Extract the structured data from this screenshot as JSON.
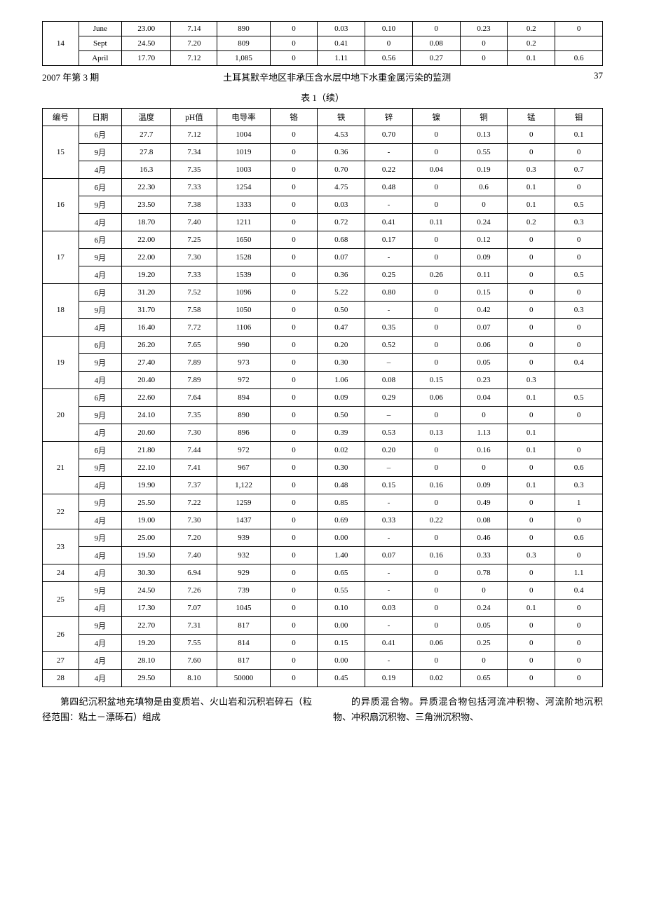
{
  "topTable": {
    "id": "14",
    "rows": [
      {
        "date": "June",
        "temp": "23.00",
        "ph": "7.14",
        "cond": "890",
        "cr": "0",
        "fe": "0.03",
        "zn": "0.10",
        "ni": "0",
        "cu": "0.23",
        "mn": "0.2",
        "mo": "0"
      },
      {
        "date": "Sept",
        "temp": "24.50",
        "ph": "7.20",
        "cond": "809",
        "cr": "0",
        "fe": "0.41",
        "zn": "0",
        "ni": "0.08",
        "cu": "0",
        "mn": "0.2",
        "mo": ""
      },
      {
        "date": "April",
        "temp": "17.70",
        "ph": "7.12",
        "cond": "1,085",
        "cr": "0",
        "fe": "1.11",
        "zn": "0.56",
        "ni": "0.27",
        "cu": "0",
        "mn": "0.1",
        "mo": "0.6"
      }
    ]
  },
  "pageHeader": {
    "issue": "2007 年第 3 期",
    "title": "土耳其默辛地区非承压含水层中地下水重金属污染的监测",
    "pageNumber": "37"
  },
  "tableCaption": "表 1（续）",
  "mainTable": {
    "columns": [
      "编号",
      "日期",
      "温度",
      "pH值",
      "电导率",
      "铬",
      "铁",
      "锌",
      "镍",
      "铜",
      "锰",
      "钼"
    ],
    "groups": [
      {
        "id": "15",
        "rows": [
          {
            "date": "6月",
            "temp": "27.7",
            "ph": "7.12",
            "cond": "1004",
            "cr": "0",
            "fe": "4.53",
            "zn": "0.70",
            "ni": "0",
            "cu": "0.13",
            "mn": "0",
            "mo": "0.1"
          },
          {
            "date": "9月",
            "temp": "27.8",
            "ph": "7.34",
            "cond": "1019",
            "cr": "0",
            "fe": "0.36",
            "zn": "-",
            "ni": "0",
            "cu": "0.55",
            "mn": "0",
            "mo": "0"
          },
          {
            "date": "4月",
            "temp": "16.3",
            "ph": "7.35",
            "cond": "1003",
            "cr": "0",
            "fe": "0.70",
            "zn": "0.22",
            "ni": "0.04",
            "cu": "0.19",
            "mn": "0.3",
            "mo": "0.7"
          }
        ]
      },
      {
        "id": "16",
        "rows": [
          {
            "date": "6月",
            "temp": "22.30",
            "ph": "7.33",
            "cond": "1254",
            "cr": "0",
            "fe": "4.75",
            "zn": "0.48",
            "ni": "0",
            "cu": "0.6",
            "mn": "0.1",
            "mo": "0"
          },
          {
            "date": "9月",
            "temp": "23.50",
            "ph": "7.38",
            "cond": "1333",
            "cr": "0",
            "fe": "0.03",
            "zn": "-",
            "ni": "0",
            "cu": "0",
            "mn": "0.1",
            "mo": "0.5"
          },
          {
            "date": "4月",
            "temp": "18.70",
            "ph": "7.40",
            "cond": "1211",
            "cr": "0",
            "fe": "0.72",
            "zn": "0.41",
            "ni": "0.11",
            "cu": "0.24",
            "mn": "0.2",
            "mo": "0.3"
          }
        ]
      },
      {
        "id": "17",
        "rows": [
          {
            "date": "6月",
            "temp": "22.00",
            "ph": "7.25",
            "cond": "1650",
            "cr": "0",
            "fe": "0.68",
            "zn": "0.17",
            "ni": "0",
            "cu": "0.12",
            "mn": "0",
            "mo": "0"
          },
          {
            "date": "9月",
            "temp": "22.00",
            "ph": "7.30",
            "cond": "1528",
            "cr": "0",
            "fe": "0.07",
            "zn": "-",
            "ni": "0",
            "cu": "0.09",
            "mn": "0",
            "mo": "0"
          },
          {
            "date": "4月",
            "temp": "19.20",
            "ph": "7.33",
            "cond": "1539",
            "cr": "0",
            "fe": "0.36",
            "zn": "0.25",
            "ni": "0.26",
            "cu": "0.11",
            "mn": "0",
            "mo": "0.5"
          }
        ]
      },
      {
        "id": "18",
        "rows": [
          {
            "date": "6月",
            "temp": "31.20",
            "ph": "7.52",
            "cond": "1096",
            "cr": "0",
            "fe": "5.22",
            "zn": "0.80",
            "ni": "0",
            "cu": "0.15",
            "mn": "0",
            "mo": "0"
          },
          {
            "date": "9月",
            "temp": "31.70",
            "ph": "7.58",
            "cond": "1050",
            "cr": "0",
            "fe": "0.50",
            "zn": "-",
            "ni": "0",
            "cu": "0.42",
            "mn": "0",
            "mo": "0.3"
          },
          {
            "date": "4月",
            "temp": "16.40",
            "ph": "7.72",
            "cond": "1106",
            "cr": "0",
            "fe": "0.47",
            "zn": "0.35",
            "ni": "0",
            "cu": "0.07",
            "mn": "0",
            "mo": "0"
          }
        ]
      },
      {
        "id": "19",
        "rows": [
          {
            "date": "6月",
            "temp": "26.20",
            "ph": "7.65",
            "cond": "990",
            "cr": "0",
            "fe": "0.20",
            "zn": "0.52",
            "ni": "0",
            "cu": "0.06",
            "mn": "0",
            "mo": "0"
          },
          {
            "date": "9月",
            "temp": "27.40",
            "ph": "7.89",
            "cond": "973",
            "cr": "0",
            "fe": "0.30",
            "zn": "–",
            "ni": "0",
            "cu": "0.05",
            "mn": "0",
            "mo": "0.4"
          },
          {
            "date": "4月",
            "temp": "20.40",
            "ph": "7.89",
            "cond": "972",
            "cr": "0",
            "fe": "1.06",
            "zn": "0.08",
            "ni": "0.15",
            "cu": "0.23",
            "mn": "0.3",
            "mo": ""
          }
        ]
      },
      {
        "id": "20",
        "rows": [
          {
            "date": "6月",
            "temp": "22.60",
            "ph": "7.64",
            "cond": "894",
            "cr": "0",
            "fe": "0.09",
            "zn": "0.29",
            "ni": "0.06",
            "cu": "0.04",
            "mn": "0.1",
            "mo": "0.5"
          },
          {
            "date": "9月",
            "temp": "24.10",
            "ph": "7.35",
            "cond": "890",
            "cr": "0",
            "fe": "0.50",
            "zn": "–",
            "ni": "0",
            "cu": "0",
            "mn": "0",
            "mo": "0"
          },
          {
            "date": "4月",
            "temp": "20.60",
            "ph": "7.30",
            "cond": "896",
            "cr": "0",
            "fe": "0.39",
            "zn": "0.53",
            "ni": "0.13",
            "cu": "1.13",
            "mn": "0.1",
            "mo": ""
          }
        ]
      },
      {
        "id": "21",
        "rows": [
          {
            "date": "6月",
            "temp": "21.80",
            "ph": "7.44",
            "cond": "972",
            "cr": "0",
            "fe": "0.02",
            "zn": "0.20",
            "ni": "0",
            "cu": "0.16",
            "mn": "0.1",
            "mo": "0"
          },
          {
            "date": "9月",
            "temp": "22.10",
            "ph": "7.41",
            "cond": "967",
            "cr": "0",
            "fe": "0.30",
            "zn": "–",
            "ni": "0",
            "cu": "0",
            "mn": "0",
            "mo": "0.6"
          },
          {
            "date": "4月",
            "temp": "19.90",
            "ph": "7.37",
            "cond": "1,122",
            "cr": "0",
            "fe": "0.48",
            "zn": "0.15",
            "ni": "0.16",
            "cu": "0.09",
            "mn": "0.1",
            "mo": "0.3"
          }
        ]
      },
      {
        "id": "22",
        "rows": [
          {
            "date": "9月",
            "temp": "25.50",
            "ph": "7.22",
            "cond": "1259",
            "cr": "0",
            "fe": "0.85",
            "zn": "-",
            "ni": "0",
            "cu": "0.49",
            "mn": "0",
            "mo": "1"
          },
          {
            "date": "4月",
            "temp": "19.00",
            "ph": "7.30",
            "cond": "1437",
            "cr": "0",
            "fe": "0.69",
            "zn": "0.33",
            "ni": "0.22",
            "cu": "0.08",
            "mn": "0",
            "mo": "0"
          }
        ]
      },
      {
        "id": "23",
        "rows": [
          {
            "date": "9月",
            "temp": "25.00",
            "ph": "7.20",
            "cond": "939",
            "cr": "0",
            "fe": "0.00",
            "zn": "-",
            "ni": "0",
            "cu": "0.46",
            "mn": "0",
            "mo": "0.6"
          },
          {
            "date": "4月",
            "temp": "19.50",
            "ph": "7.40",
            "cond": "932",
            "cr": "0",
            "fe": "1.40",
            "zn": "0.07",
            "ni": "0.16",
            "cu": "0.33",
            "mn": "0.3",
            "mo": "0"
          }
        ]
      },
      {
        "id": "24",
        "rows": [
          {
            "date": "4月",
            "temp": "30.30",
            "ph": "6.94",
            "cond": "929",
            "cr": "0",
            "fe": "0.65",
            "zn": "-",
            "ni": "0",
            "cu": "0.78",
            "mn": "0",
            "mo": "1.1"
          }
        ]
      },
      {
        "id": "25",
        "rows": [
          {
            "date": "9月",
            "temp": "24.50",
            "ph": "7.26",
            "cond": "739",
            "cr": "0",
            "fe": "0.55",
            "zn": "-",
            "ni": "0",
            "cu": "0",
            "mn": "0",
            "mo": "0.4"
          },
          {
            "date": "4月",
            "temp": "17.30",
            "ph": "7.07",
            "cond": "1045",
            "cr": "0",
            "fe": "0.10",
            "zn": "0.03",
            "ni": "0",
            "cu": "0.24",
            "mn": "0.1",
            "mo": "0"
          }
        ]
      },
      {
        "id": "26",
        "rows": [
          {
            "date": "9月",
            "temp": "22.70",
            "ph": "7.31",
            "cond": "817",
            "cr": "0",
            "fe": "0.00",
            "zn": "-",
            "ni": "0",
            "cu": "0.05",
            "mn": "0",
            "mo": "0"
          },
          {
            "date": "4月",
            "temp": "19.20",
            "ph": "7.55",
            "cond": "814",
            "cr": "0",
            "fe": "0.15",
            "zn": "0.41",
            "ni": "0.06",
            "cu": "0.25",
            "mn": "0",
            "mo": "0"
          }
        ]
      },
      {
        "id": "27",
        "rows": [
          {
            "date": "4月",
            "temp": "28.10",
            "ph": "7.60",
            "cond": "817",
            "cr": "0",
            "fe": "0.00",
            "zn": "-",
            "ni": "0",
            "cu": "0",
            "mn": "0",
            "mo": "0"
          }
        ]
      },
      {
        "id": "28",
        "rows": [
          {
            "date": "4月",
            "temp": "29.50",
            "ph": "8.10",
            "cond": "50000",
            "cr": "0",
            "fe": "0.45",
            "zn": "0.19",
            "ni": "0.02",
            "cu": "0.65",
            "mn": "0",
            "mo": "0"
          }
        ]
      }
    ]
  },
  "bodyText": {
    "left": "第四纪沉积盆地充填物是由变质岩、火山岩和沉积岩碎石（粒径范围：粘土－漂砾石）组成",
    "right": "的异质混合物。异质混合物包括河流冲积物、河流阶地沉积物、冲积扇沉积物、三角洲沉积物、"
  }
}
